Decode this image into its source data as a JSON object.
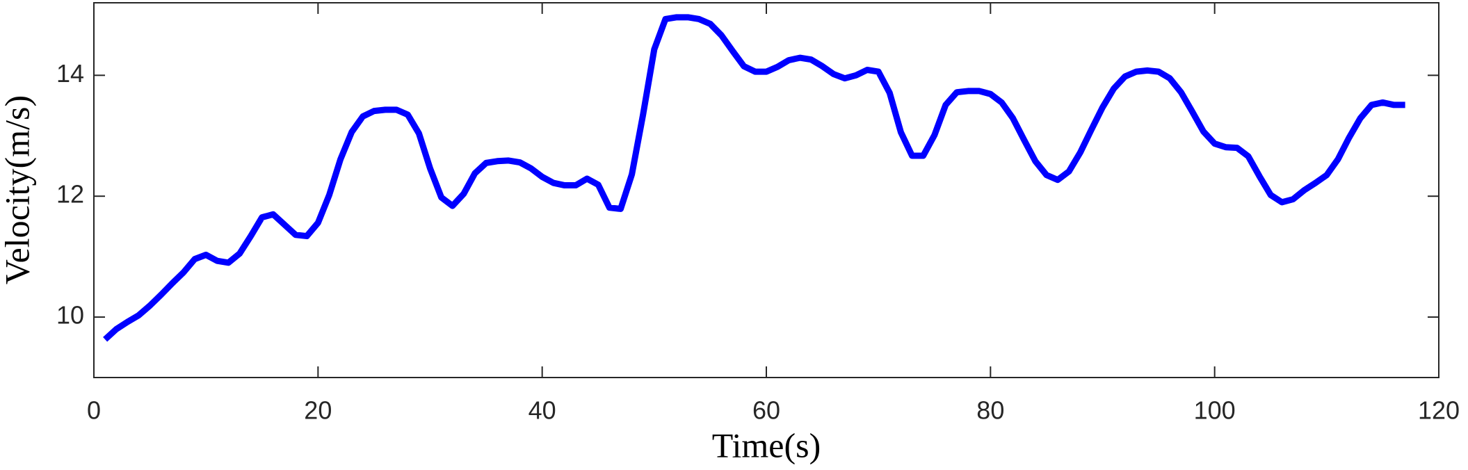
{
  "chart_data": {
    "type": "line",
    "xlabel": "Time(s)",
    "ylabel": "Velocity(m/s)",
    "color": "#0000ff",
    "x": [
      1,
      2,
      3,
      4,
      5,
      6,
      7,
      8,
      9,
      10,
      11,
      12,
      13,
      14,
      15,
      16,
      17,
      18,
      19,
      20,
      21,
      22,
      23,
      24,
      25,
      26,
      27,
      28,
      29,
      30,
      31,
      32,
      33,
      34,
      35,
      36,
      37,
      38,
      39,
      40,
      41,
      42,
      43,
      44,
      45,
      46,
      47,
      48,
      49,
      50,
      51,
      52,
      53,
      54,
      55,
      56,
      57,
      58,
      59,
      60,
      61,
      62,
      63,
      64,
      65,
      66,
      67,
      68,
      69,
      70,
      71,
      72,
      73,
      74,
      75,
      76,
      77,
      78,
      79,
      80,
      81,
      82,
      83,
      84,
      85,
      86,
      87,
      88,
      89,
      90,
      91,
      92,
      93,
      94,
      95,
      96,
      97,
      98,
      99,
      100,
      101,
      102,
      103,
      104,
      105,
      106,
      107,
      108,
      109,
      110,
      111,
      112,
      113,
      114,
      115,
      116,
      117
    ],
    "values": [
      9.63,
      9.8,
      9.92,
      10.03,
      10.19,
      10.37,
      10.56,
      10.74,
      10.96,
      11.03,
      10.93,
      10.9,
      11.05,
      11.34,
      11.65,
      11.7,
      11.53,
      11.36,
      11.34,
      11.56,
      12.02,
      12.61,
      13.06,
      13.32,
      13.41,
      13.43,
      13.43,
      13.35,
      13.04,
      12.46,
      11.98,
      11.84,
      12.04,
      12.38,
      12.55,
      12.58,
      12.59,
      12.56,
      12.46,
      12.32,
      12.22,
      12.18,
      12.18,
      12.29,
      12.19,
      11.81,
      11.79,
      12.36,
      13.35,
      14.43,
      14.93,
      14.96,
      14.96,
      14.93,
      14.85,
      14.66,
      14.4,
      14.15,
      14.06,
      14.06,
      14.14,
      14.25,
      14.29,
      14.26,
      14.15,
      14.02,
      13.95,
      14.0,
      14.09,
      14.06,
      13.71,
      13.06,
      12.67,
      12.67,
      13.01,
      13.51,
      13.72,
      13.74,
      13.74,
      13.69,
      13.55,
      13.29,
      12.93,
      12.58,
      12.35,
      12.27,
      12.41,
      12.72,
      13.1,
      13.47,
      13.78,
      13.98,
      14.06,
      14.08,
      14.06,
      13.95,
      13.72,
      13.4,
      13.07,
      12.87,
      12.81,
      12.8,
      12.66,
      12.33,
      12.02,
      11.9,
      11.95,
      12.1,
      12.22,
      12.35,
      12.61,
      12.97,
      13.29,
      13.51,
      13.55,
      13.51,
      13.51
    ],
    "xlim": [
      0,
      120
    ],
    "xticks": [
      0,
      20,
      40,
      60,
      80,
      100,
      120
    ],
    "ylim": [
      9,
      15.2
    ],
    "yticks": [
      10,
      12,
      14
    ],
    "grid": false
  }
}
